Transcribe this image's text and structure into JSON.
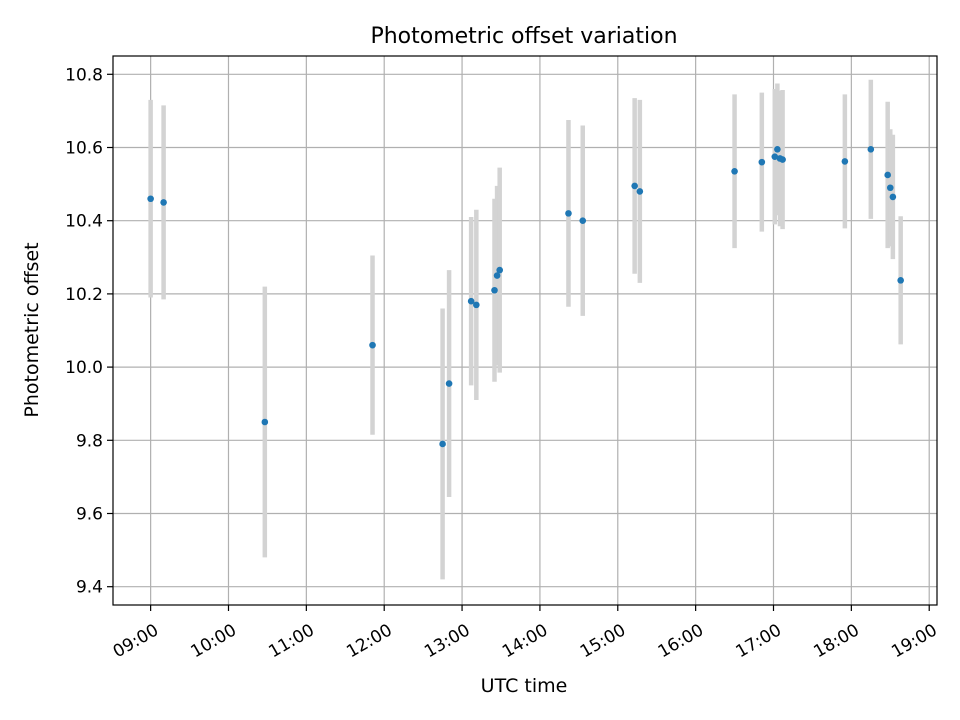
{
  "chart_data": {
    "type": "scatter",
    "title": "Photometric offset variation",
    "xlabel": "UTC time",
    "ylabel": "Photometric offset",
    "grid": true,
    "x_tick_labels": [
      "09:00",
      "10:00",
      "11:00",
      "12:00",
      "13:00",
      "14:00",
      "15:00",
      "16:00",
      "17:00",
      "18:00",
      "19:00"
    ],
    "y_ticks": [
      9.4,
      9.6,
      9.8,
      10.0,
      10.2,
      10.4,
      10.6,
      10.8
    ],
    "xlim": [
      "08:31",
      "19:06"
    ],
    "ylim": [
      9.35,
      10.85
    ],
    "colors": {
      "marker": "#1f77b4",
      "errorbar": "#d3d3d3",
      "grid": "#b0b0b0"
    },
    "series": [
      {
        "points": [
          {
            "x": "09:00",
            "y": 10.46,
            "err": 0.27
          },
          {
            "x": "09:10",
            "y": 10.45,
            "err": 0.265
          },
          {
            "x": "10:28",
            "y": 9.85,
            "err": 0.37
          },
          {
            "x": "11:51",
            "y": 10.06,
            "err": 0.245
          },
          {
            "x": "12:45",
            "y": 9.79,
            "err": 0.37
          },
          {
            "x": "12:50",
            "y": 9.955,
            "err": 0.31
          },
          {
            "x": "13:07",
            "y": 10.18,
            "err": 0.23
          },
          {
            "x": "13:11",
            "y": 10.17,
            "err": 0.26
          },
          {
            "x": "13:25",
            "y": 10.21,
            "err": 0.25
          },
          {
            "x": "13:27",
            "y": 10.25,
            "err": 0.245
          },
          {
            "x": "13:29",
            "y": 10.265,
            "err": 0.28
          },
          {
            "x": "14:22",
            "y": 10.42,
            "err": 0.255
          },
          {
            "x": "14:33",
            "y": 10.4,
            "err": 0.26
          },
          {
            "x": "15:13",
            "y": 10.495,
            "err": 0.24
          },
          {
            "x": "15:17",
            "y": 10.48,
            "err": 0.25
          },
          {
            "x": "16:30",
            "y": 10.535,
            "err": 0.21
          },
          {
            "x": "16:51",
            "y": 10.56,
            "err": 0.19
          },
          {
            "x": "17:01",
            "y": 10.575,
            "err": 0.185
          },
          {
            "x": "17:03",
            "y": 10.595,
            "err": 0.18
          },
          {
            "x": "17:05",
            "y": 10.57,
            "err": 0.185
          },
          {
            "x": "17:07",
            "y": 10.567,
            "err": 0.19
          },
          {
            "x": "17:55",
            "y": 10.562,
            "err": 0.183
          },
          {
            "x": "18:15",
            "y": 10.595,
            "err": 0.19
          },
          {
            "x": "18:28",
            "y": 10.525,
            "err": 0.2
          },
          {
            "x": "18:30",
            "y": 10.49,
            "err": 0.16
          },
          {
            "x": "18:32",
            "y": 10.465,
            "err": 0.17
          },
          {
            "x": "18:38",
            "y": 10.237,
            "err": 0.175
          }
        ]
      }
    ]
  }
}
